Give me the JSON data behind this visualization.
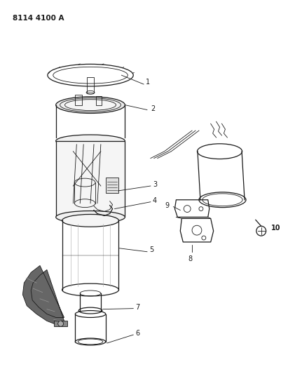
{
  "title_code": "8114 4100 A",
  "background_color": "#ffffff",
  "line_color": "#1a1a1a",
  "figsize": [
    4.11,
    5.33
  ],
  "dpi": 100
}
